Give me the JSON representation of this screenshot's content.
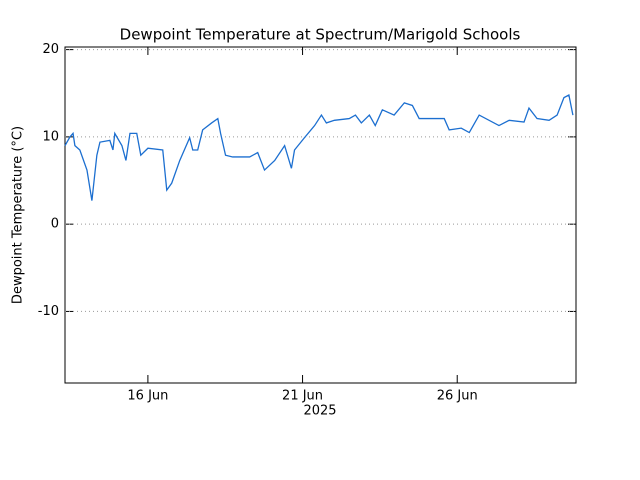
{
  "chart_data": {
    "type": "line",
    "title": "Dewpoint Temperature at Spectrum/Marigold Schools",
    "y_label": "Dewpoint Temperature (°C)",
    "x_label": "2025",
    "xlim": [
      13.32,
      29.84
    ],
    "xticks": [
      {
        "value": 16,
        "label": "16 Jun"
      },
      {
        "value": 21,
        "label": "21 Jun"
      },
      {
        "value": 26,
        "label": "26 Jun"
      }
    ],
    "ylim": [
      -18.2,
      20.3
    ],
    "yticks": [
      -10,
      0,
      10,
      20
    ],
    "grid": true,
    "series": [
      {
        "color": "#1c6fd0",
        "x": [
          13.32,
          13.48,
          13.58,
          13.64,
          13.8,
          14.03,
          14.19,
          14.35,
          14.45,
          14.77,
          14.87,
          14.93,
          15.16,
          15.29,
          15.42,
          15.64,
          15.77,
          16.0,
          16.48,
          16.61,
          16.77,
          17.03,
          17.35,
          17.45,
          17.61,
          17.77,
          18.06,
          18.26,
          18.35,
          18.51,
          18.74,
          19.29,
          19.55,
          19.77,
          20.1,
          20.42,
          20.64,
          20.74,
          21.06,
          21.39,
          21.61,
          21.77,
          22.03,
          22.51,
          22.71,
          22.9,
          23.16,
          23.35,
          23.58,
          23.96,
          24.29,
          24.55,
          24.77,
          25.58,
          25.74,
          26.13,
          26.39,
          26.71,
          27.35,
          27.68,
          28.16,
          28.32,
          28.58,
          28.97,
          29.23,
          29.45,
          29.61,
          29.74
        ],
        "values": [
          9.0,
          10.0,
          10.4,
          9.0,
          8.5,
          6.2,
          2.7,
          7.9,
          9.4,
          9.6,
          8.5,
          10.4,
          9.0,
          7.3,
          10.4,
          10.4,
          7.9,
          8.7,
          8.5,
          3.9,
          4.7,
          7.3,
          9.9,
          8.5,
          8.5,
          10.8,
          11.6,
          12.1,
          10.4,
          7.9,
          7.7,
          7.7,
          8.2,
          6.2,
          7.3,
          9.0,
          6.4,
          8.5,
          9.9,
          11.3,
          12.5,
          11.6,
          11.9,
          12.1,
          12.5,
          11.6,
          12.5,
          11.3,
          13.1,
          12.5,
          13.9,
          13.6,
          12.1,
          12.1,
          10.8,
          11.0,
          10.5,
          12.5,
          11.3,
          11.9,
          11.7,
          13.3,
          12.1,
          11.9,
          12.5,
          14.5,
          14.8,
          12.5
        ]
      }
    ]
  }
}
